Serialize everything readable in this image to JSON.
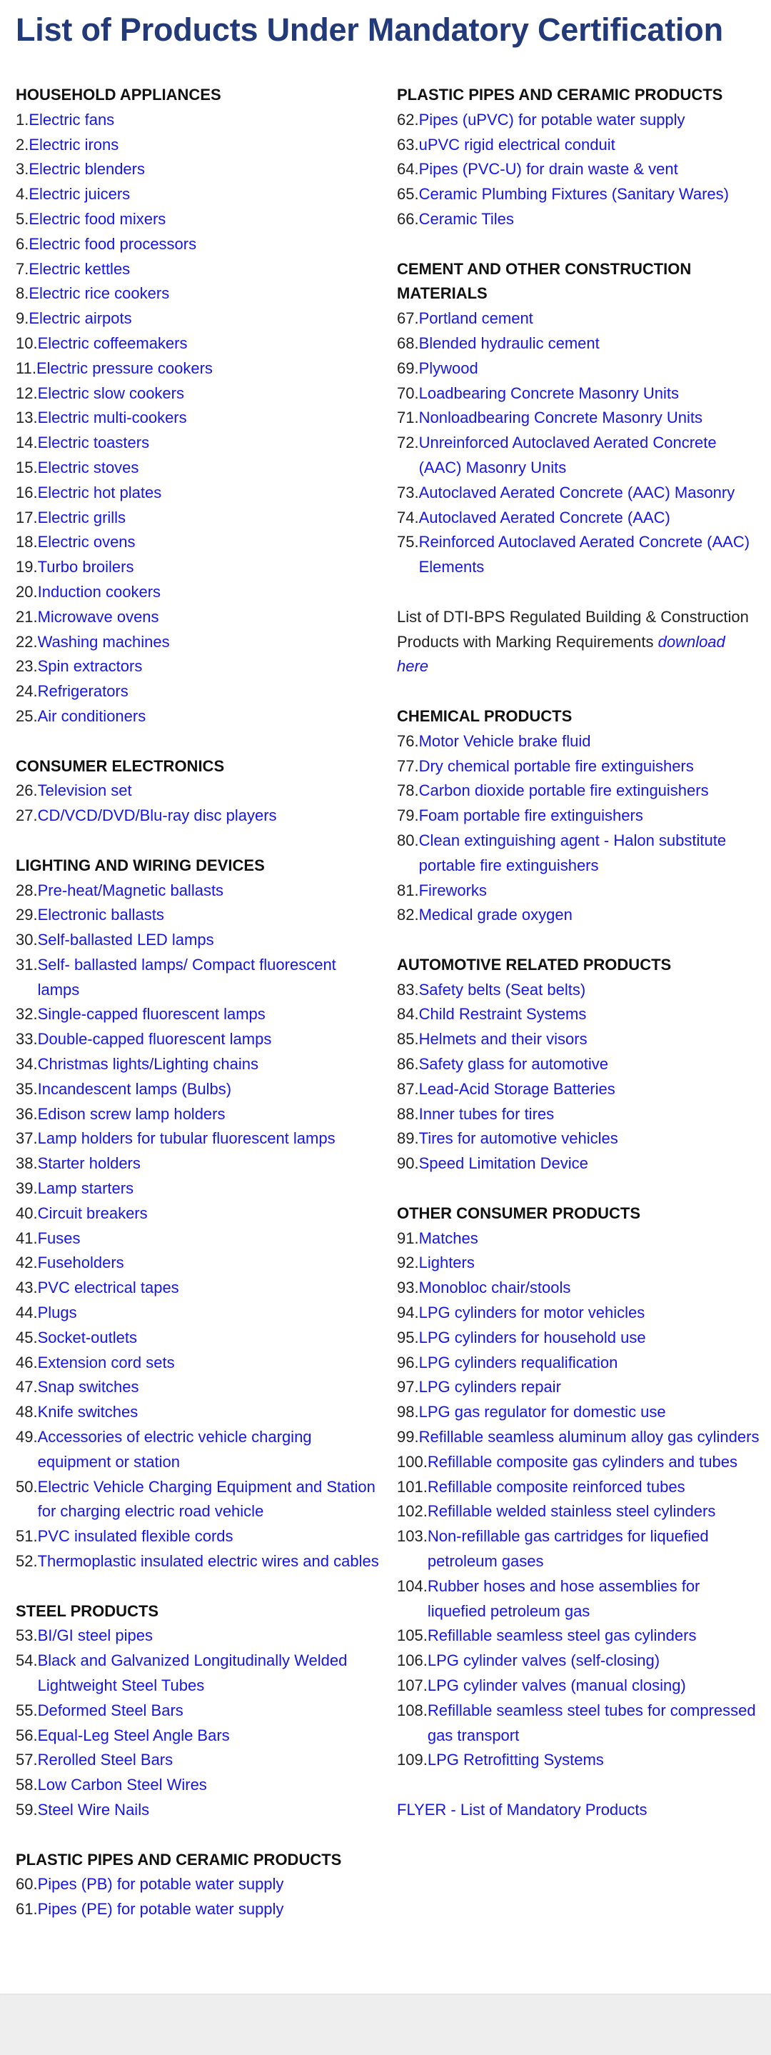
{
  "title": "List of Products Under Mandatory Certification",
  "colors": {
    "title": "#233a7a",
    "link": "#1515e8",
    "text": "#222222",
    "footer": "#eeeeee"
  },
  "left_column": [
    {
      "type": "section",
      "heading": "HOUSEHOLD APPLIANCES",
      "items": [
        {
          "n": "1.",
          "t": "Electric fans"
        },
        {
          "n": "2.",
          "t": "Electric irons"
        },
        {
          "n": "3.",
          "t": "Electric blenders"
        },
        {
          "n": "4.",
          "t": "Electric juicers"
        },
        {
          "n": "5.",
          "t": "Electric food mixers"
        },
        {
          "n": "6.",
          "t": "Electric food processors"
        },
        {
          "n": "7.",
          "t": "Electric kettles"
        },
        {
          "n": "8.",
          "t": "Electric rice cookers"
        },
        {
          "n": "9.",
          "t": "Electric airpots"
        },
        {
          "n": "10.",
          "t": "Electric coffeemakers"
        },
        {
          "n": "11.",
          "t": "Electric pressure cookers"
        },
        {
          "n": "12.",
          "t": "Electric slow cookers"
        },
        {
          "n": "13.",
          "t": "Electric multi-cookers"
        },
        {
          "n": "14.",
          "t": "Electric toasters"
        },
        {
          "n": "15.",
          "t": "Electric stoves"
        },
        {
          "n": "16.",
          "t": "Electric hot plates"
        },
        {
          "n": "17.",
          "t": "Electric grills"
        },
        {
          "n": "18.",
          "t": "Electric ovens"
        },
        {
          "n": "19.",
          "t": "Turbo broilers"
        },
        {
          "n": "20.",
          "t": "Induction cookers"
        },
        {
          "n": "21.",
          "t": "Microwave ovens"
        },
        {
          "n": "22.",
          "t": "Washing machines"
        },
        {
          "n": "23.",
          "t": "Spin extractors"
        },
        {
          "n": "24.",
          "t": "Refrigerators"
        },
        {
          "n": "25.",
          "t": "Air conditioners"
        }
      ]
    },
    {
      "type": "section",
      "heading": "CONSUMER ELECTRONICS",
      "items": [
        {
          "n": "26.",
          "t": "Television set"
        },
        {
          "n": "27.",
          "t": "CD/VCD/DVD/Blu-ray disc players"
        }
      ]
    },
    {
      "type": "section",
      "heading": "LIGHTING AND WIRING DEVICES",
      "items": [
        {
          "n": "28.",
          "t": "Pre-heat/Magnetic ballasts"
        },
        {
          "n": "29.",
          "t": "Electronic ballasts"
        },
        {
          "n": "30.",
          "t": "Self-ballasted LED lamps"
        },
        {
          "n": "31.",
          "t": "Self- ballasted lamps/ Compact fluorescent lamps"
        },
        {
          "n": "32.",
          "t": "Single-capped fluorescent lamps"
        },
        {
          "n": "33.",
          "t": "Double-capped fluorescent lamps"
        },
        {
          "n": "34.",
          "t": "Christmas lights/Lighting chains"
        },
        {
          "n": "35.",
          "t": "Incandescent lamps (Bulbs)"
        },
        {
          "n": "36.",
          "t": "Edison screw lamp holders"
        },
        {
          "n": "37.",
          "t": "Lamp holders for tubular fluorescent lamps"
        },
        {
          "n": "38.",
          "t": "Starter holders"
        },
        {
          "n": "39.",
          "t": "Lamp starters"
        },
        {
          "n": "40.",
          "t": "Circuit breakers"
        },
        {
          "n": "41.",
          "t": "Fuses"
        },
        {
          "n": "42.",
          "t": "Fuseholders"
        },
        {
          "n": "43.",
          "t": "PVC electrical tapes"
        },
        {
          "n": "44.",
          "t": "Plugs"
        },
        {
          "n": "45.",
          "t": "Socket-outlets"
        },
        {
          "n": "46.",
          "t": "Extension cord sets"
        },
        {
          "n": "47.",
          "t": "Snap switches"
        },
        {
          "n": "48.",
          "t": "Knife switches"
        },
        {
          "n": "49.",
          "t": "Accessories of electric vehicle charging equipment or station"
        },
        {
          "n": "50.",
          "t": "Electric Vehicle Charging Equipment and Station for charging electric road vehicle"
        },
        {
          "n": "51.",
          "t": "PVC insulated flexible cords"
        },
        {
          "n": "52.",
          "t": "Thermoplastic insulated electric wires and cables"
        }
      ]
    },
    {
      "type": "section",
      "heading": "STEEL PRODUCTS",
      "items": [
        {
          "n": "53.",
          "t": "BI/GI steel pipes"
        },
        {
          "n": "54.",
          "t": "Black and Galvanized Longitudinally Welded Lightweight Steel Tubes"
        },
        {
          "n": "55.",
          "t": "Deformed Steel Bars"
        },
        {
          "n": "56.",
          "t": "Equal-Leg Steel Angle Bars"
        },
        {
          "n": "57.",
          "t": "Rerolled Steel Bars"
        },
        {
          "n": "58.",
          "t": "Low Carbon Steel Wires"
        },
        {
          "n": "59.",
          "t": "Steel Wire Nails"
        }
      ]
    },
    {
      "type": "section",
      "heading": "PLASTIC PIPES AND CERAMIC PRODUCTS",
      "items": [
        {
          "n": "60.",
          "t": "Pipes (PB) for potable water supply"
        },
        {
          "n": "61.",
          "t": "Pipes (PE) for potable water supply"
        }
      ]
    }
  ],
  "right_column": [
    {
      "type": "section",
      "heading": "PLASTIC PIPES AND CERAMIC PRODUCTS",
      "items": [
        {
          "n": "62.",
          "t": "Pipes (uPVC) for potable water supply"
        },
        {
          "n": "63.",
          "t": "uPVC rigid electrical conduit"
        },
        {
          "n": "64.",
          "t": "Pipes (PVC-U) for drain waste & vent"
        },
        {
          "n": "65.",
          "t": "Ceramic Plumbing Fixtures (Sanitary Wares)"
        },
        {
          "n": "66.",
          "t": "Ceramic Tiles"
        }
      ]
    },
    {
      "type": "section",
      "heading": "CEMENT AND OTHER CONSTRUCTION MATERIALS",
      "items": [
        {
          "n": "67.",
          "t": "Portland cement"
        },
        {
          "n": "68.",
          "t": "Blended hydraulic cement"
        },
        {
          "n": "69.",
          "t": "Plywood"
        },
        {
          "n": "70.",
          "t": "Loadbearing Concrete Masonry Units"
        },
        {
          "n": "71.",
          "t": "Nonloadbearing Concrete Masonry Units"
        },
        {
          "n": "72.",
          "t": "Unreinforced Autoclaved Aerated Concrete (AAC) Masonry Units"
        },
        {
          "n": "73.",
          "t": "Autoclaved Aerated Concrete (AAC) Masonry"
        },
        {
          "n": "74.",
          "t": "Autoclaved Aerated Concrete (AAC)"
        },
        {
          "n": "75.",
          "t": "Reinforced Autoclaved Aerated Concrete (AAC) Elements"
        }
      ]
    },
    {
      "type": "note",
      "text": "List of DTI-BPS Regulated Building & Construction Products with Marking Requirements ",
      "link": "download here"
    },
    {
      "type": "section",
      "heading": "CHEMICAL PRODUCTS",
      "items": [
        {
          "n": "76.",
          "t": "Motor Vehicle brake fluid"
        },
        {
          "n": "77.",
          "t": "Dry chemical portable fire extinguishers"
        },
        {
          "n": "78.",
          "t": "Carbon dioxide portable fire extinguishers"
        },
        {
          "n": "79.",
          "t": "Foam portable fire extinguishers"
        },
        {
          "n": "80.",
          "t": "Clean extinguishing agent - Halon substitute portable fire extinguishers"
        },
        {
          "n": "81.",
          "t": "Fireworks"
        },
        {
          "n": "82.",
          "t": "Medical grade oxygen"
        }
      ]
    },
    {
      "type": "section",
      "heading": "AUTOMOTIVE RELATED PRODUCTS",
      "items": [
        {
          "n": "83.",
          "t": "Safety belts (Seat belts)"
        },
        {
          "n": "84.",
          "t": "Child Restraint Systems"
        },
        {
          "n": "85.",
          "t": "Helmets and their visors"
        },
        {
          "n": "86.",
          "t": "Safety glass for automotive"
        },
        {
          "n": "87.",
          "t": "Lead-Acid Storage Batteries"
        },
        {
          "n": "88.",
          "t": "Inner tubes for tires"
        },
        {
          "n": "89.",
          "t": "Tires for automotive vehicles"
        },
        {
          "n": "90.",
          "t": "Speed Limitation Device"
        }
      ]
    },
    {
      "type": "section",
      "heading": "OTHER CONSUMER PRODUCTS",
      "items": [
        {
          "n": "91.",
          "t": "Matches"
        },
        {
          "n": "92.",
          "t": "Lighters"
        },
        {
          "n": "93.",
          "t": "Monobloc chair/stools"
        },
        {
          "n": "94.",
          "t": "LPG cylinders for motor vehicles"
        },
        {
          "n": "95.",
          "t": "LPG cylinders for household use"
        },
        {
          "n": "96.",
          "t": "LPG cylinders requalification"
        },
        {
          "n": "97.",
          "t": "LPG cylinders repair"
        },
        {
          "n": "98.",
          "t": "LPG gas regulator for domestic use"
        },
        {
          "n": "99.",
          "t": "Refillable seamless aluminum alloy gas cylinders"
        },
        {
          "n": "100.",
          "t": "Refillable composite gas cylinders and tubes"
        },
        {
          "n": "101.",
          "t": "Refillable composite reinforced tubes"
        },
        {
          "n": "102.",
          "t": "Refillable welded stainless steel cylinders"
        },
        {
          "n": "103.",
          "t": "Non-refillable gas cartridges for liquefied petroleum gases"
        },
        {
          "n": "104.",
          "t": "Rubber hoses and hose assemblies for liquefied petroleum gas"
        },
        {
          "n": "105.",
          "t": "Refillable seamless steel gas cylinders"
        },
        {
          "n": "106.",
          "t": "LPG cylinder valves (self-closing)"
        },
        {
          "n": "107.",
          "t": "LPG cylinder valves (manual closing)"
        },
        {
          "n": "108.",
          "t": "Refillable seamless steel tubes for compressed gas transport"
        },
        {
          "n": "109.",
          "t": "LPG Retrofitting Systems"
        }
      ]
    },
    {
      "type": "link",
      "text": "FLYER - List of Mandatory Products"
    }
  ]
}
